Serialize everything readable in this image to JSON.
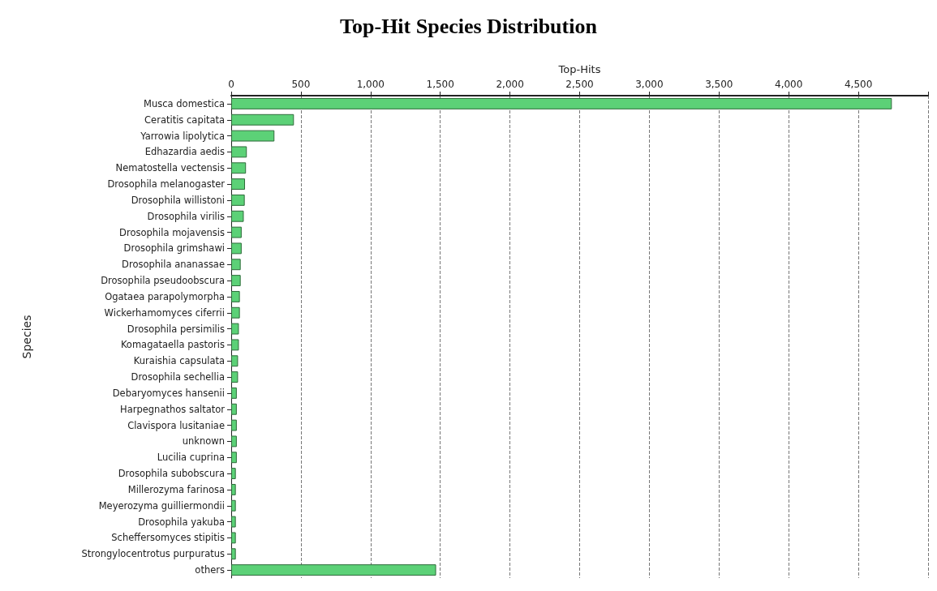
{
  "chart_data": {
    "type": "bar",
    "orientation": "horizontal",
    "title": "Top-Hit Species Distribution",
    "xlabel": "Top-Hits",
    "ylabel": "Species",
    "categories": [
      "Musca domestica",
      "Ceratitis capitata",
      "Yarrowia lipolytica",
      "Edhazardia aedis",
      "Nematostella vectensis",
      "Drosophila melanogaster",
      "Drosophila willistoni",
      "Drosophila virilis",
      "Drosophila mojavensis",
      "Drosophila grimshawi",
      "Drosophila ananassae",
      "Drosophila pseudoobscura",
      "Ogataea parapolymorpha",
      "Wickerhamomyces ciferrii",
      "Drosophila persimilis",
      "Komagataella pastoris",
      "Kuraishia capsulata",
      "Drosophila sechellia",
      "Debaryomyces hansenii",
      "Harpegnathos saltator",
      "Clavispora lusitaniae",
      "unknown",
      "Lucilia cuprina",
      "Drosophila subobscura",
      "Millerozyma farinosa",
      "Meyerozyma guilliermondii",
      "Drosophila yakuba",
      "Scheffersomyces stipitis",
      "Strongylocentrotus purpuratus",
      "others"
    ],
    "values": [
      4740,
      450,
      310,
      112,
      106,
      99,
      97,
      90,
      75,
      75,
      68,
      68,
      62,
      62,
      55,
      55,
      49,
      49,
      40,
      40,
      40,
      40,
      40,
      33,
      33,
      33,
      33,
      33,
      33,
      1470
    ],
    "color": "#5cd177",
    "xlim": [
      0,
      5000
    ],
    "xticks": [
      0,
      500,
      {
        "value": 1000,
        "label": "1,000"
      },
      {
        "value": 1500,
        "label": "1,500"
      },
      {
        "value": 2000,
        "label": "2,000"
      },
      {
        "value": 2500,
        "label": "2,500"
      },
      {
        "value": 3000,
        "label": "3,000"
      },
      {
        "value": 3500,
        "label": "3,500"
      },
      {
        "value": 4000,
        "label": "4,000"
      },
      {
        "value": 4500,
        "label": "4,500"
      }
    ],
    "grid": "x"
  }
}
